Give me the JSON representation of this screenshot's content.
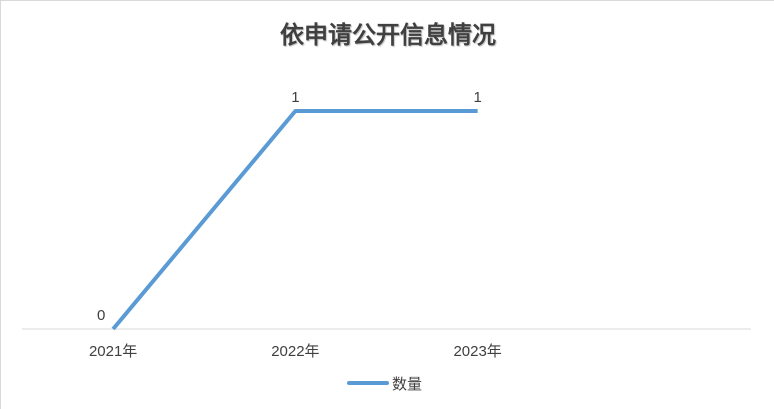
{
  "chart_data": {
    "type": "line",
    "title": "依申请公开信息情况",
    "categories": [
      "2021年",
      "2022年",
      "2023年"
    ],
    "series": [
      {
        "name": "数量",
        "values": [
          0,
          1,
          1
        ],
        "color": "#5b9bd5"
      }
    ],
    "data_labels": true,
    "ylim": [
      0,
      1
    ],
    "y_axis_visible": false,
    "grid": false,
    "legend": "bottom",
    "xlabel": "",
    "ylabel": ""
  }
}
